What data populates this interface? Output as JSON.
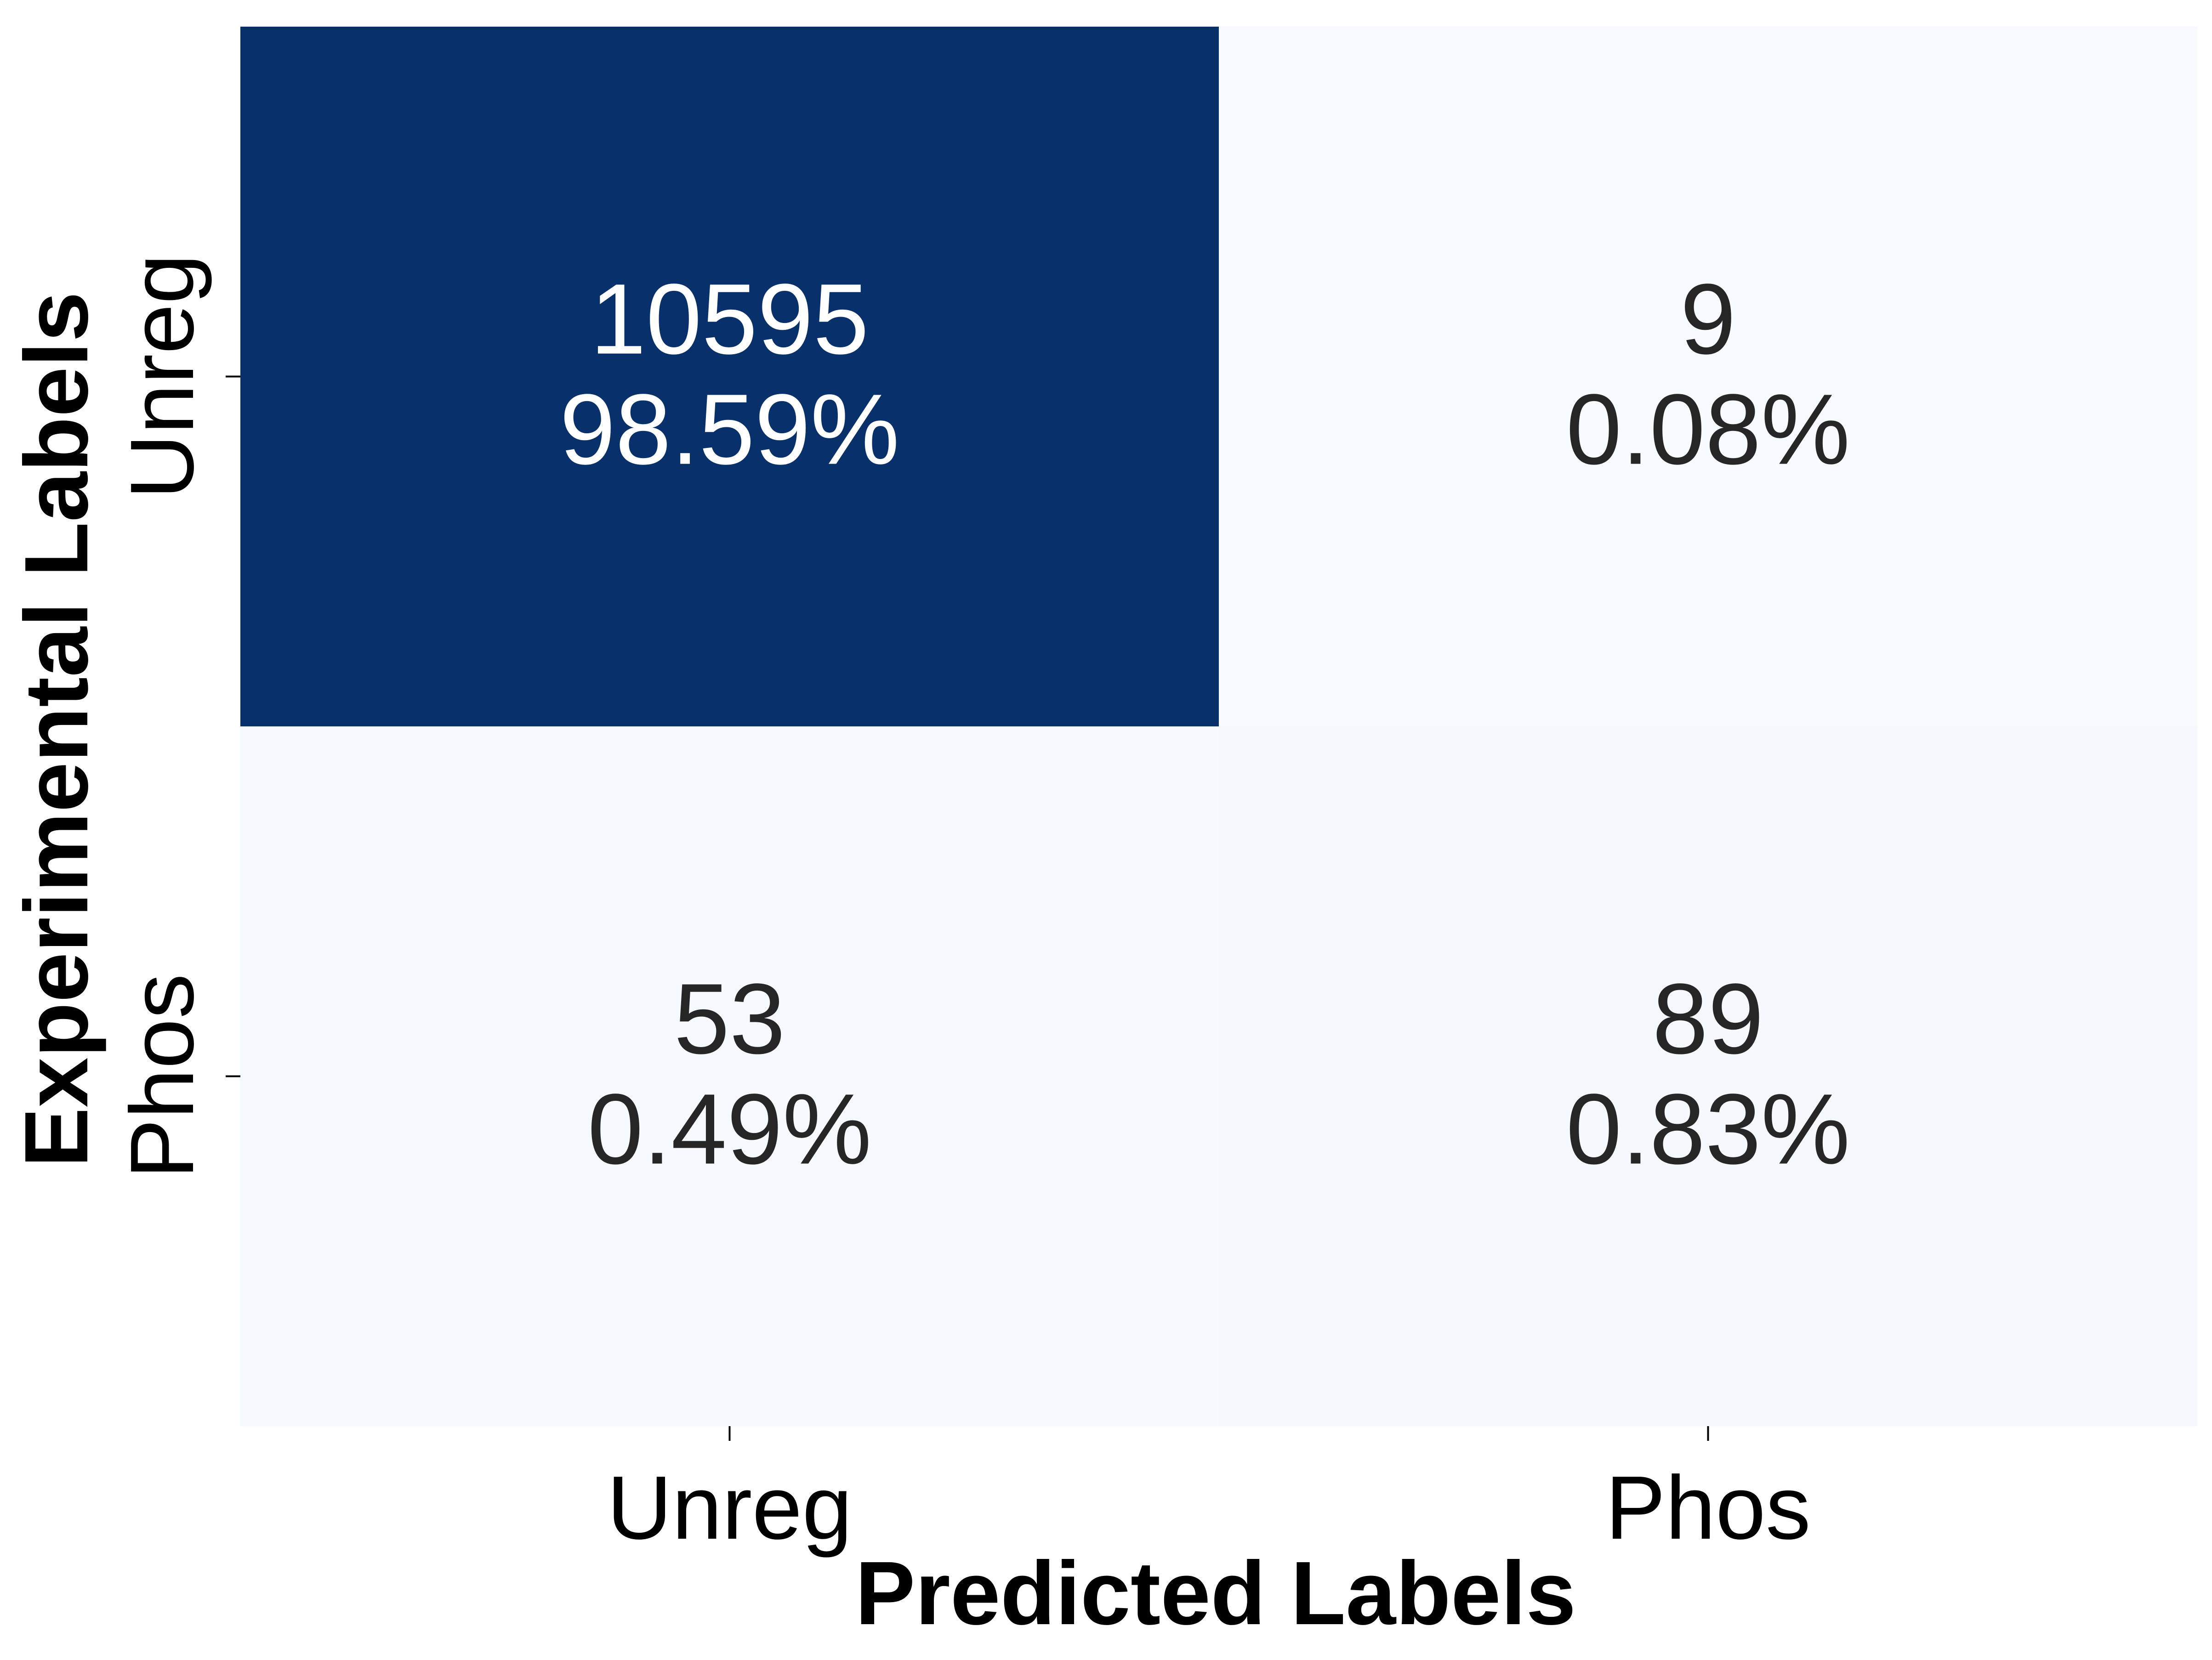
{
  "chart_data": {
    "type": "heatmap",
    "xlabel": "Predicted Labels",
    "ylabel": "Experimental Labels",
    "x_categories": [
      "Unreg",
      "Phos"
    ],
    "y_categories": [
      "Unreg",
      "Phos"
    ],
    "values": [
      [
        10595,
        9
      ],
      [
        53,
        89
      ]
    ],
    "percentages": [
      [
        "98.59%",
        "0.08%"
      ],
      [
        "0.49%",
        "0.83%"
      ]
    ],
    "colormap": "Blues",
    "colors": {
      "high": "#08306b",
      "low": "#f7fbff",
      "text_on_dark": "#ffffff",
      "text_on_light": "#262626"
    },
    "colorbar": false,
    "grid": false
  }
}
